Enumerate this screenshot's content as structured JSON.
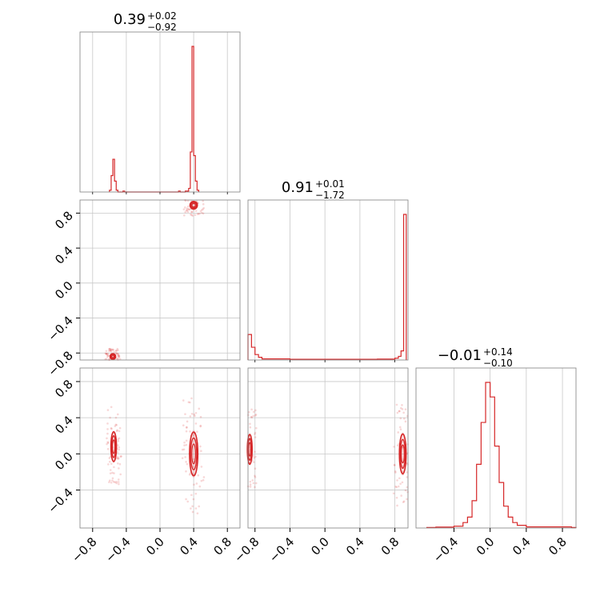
{
  "colors": {
    "accent": "#d62728",
    "grid": "#c8c8c8",
    "frame": "#808080"
  },
  "chart_data": {
    "type": "corner",
    "titles": [
      {
        "value": "0.39",
        "plus": "+0.02",
        "minus": "−0.92"
      },
      {
        "value": "0.91",
        "plus": "+0.01",
        "minus": "−1.72"
      },
      {
        "value": "−0.01",
        "plus": "+0.14",
        "minus": "−0.10"
      }
    ],
    "axes": [
      {
        "range": [
          -0.95,
          0.95
        ],
        "ticks": [
          "−0.8",
          "−0.4",
          "0.0",
          "0.4",
          "0.8"
        ],
        "tick_values": [
          -0.8,
          -0.4,
          0.0,
          0.4,
          0.8
        ]
      },
      {
        "range": [
          -0.88,
          0.95
        ],
        "ticks": [
          "−0.8",
          "−0.4",
          "0.0",
          "0.4",
          "0.8"
        ],
        "tick_values": [
          -0.8,
          -0.4,
          0.0,
          0.4,
          0.8
        ]
      },
      {
        "range": [
          -0.82,
          0.95
        ],
        "ticks": [
          "−0.4",
          "0.0",
          "0.4",
          "0.8"
        ],
        "tick_values": [
          -0.4,
          0.0,
          0.4,
          0.8
        ]
      }
    ],
    "histograms": [
      {
        "param": 0,
        "bins": [
          {
            "x0": -0.6,
            "x1": -0.58,
            "count": 0.01
          },
          {
            "x0": -0.58,
            "x1": -0.56,
            "count": 0.09
          },
          {
            "x0": -0.56,
            "x1": -0.54,
            "count": 0.18
          },
          {
            "x0": -0.54,
            "x1": -0.52,
            "count": 0.06
          },
          {
            "x0": -0.52,
            "x1": -0.5,
            "count": 0.01
          },
          {
            "x0": -0.44,
            "x1": -0.42,
            "count": 0.005
          },
          {
            "x0": 0.22,
            "x1": 0.24,
            "count": 0.005
          },
          {
            "x0": 0.3,
            "x1": 0.34,
            "count": 0.005
          },
          {
            "x0": 0.34,
            "x1": 0.36,
            "count": 0.02
          },
          {
            "x0": 0.36,
            "x1": 0.38,
            "count": 0.22
          },
          {
            "x0": 0.38,
            "x1": 0.4,
            "count": 0.8
          },
          {
            "x0": 0.4,
            "x1": 0.42,
            "count": 0.2
          },
          {
            "x0": 0.42,
            "x1": 0.44,
            "count": 0.06
          },
          {
            "x0": 0.44,
            "x1": 0.46,
            "count": 0.01
          }
        ]
      },
      {
        "param": 1,
        "bins": [
          {
            "x0": -0.88,
            "x1": -0.84,
            "count": 0.14
          },
          {
            "x0": -0.84,
            "x1": -0.8,
            "count": 0.07
          },
          {
            "x0": -0.8,
            "x1": -0.76,
            "count": 0.03
          },
          {
            "x0": -0.76,
            "x1": -0.72,
            "count": 0.015
          },
          {
            "x0": -0.72,
            "x1": -0.4,
            "count": 0.006
          },
          {
            "x0": -0.4,
            "x1": 0.6,
            "count": 0.004
          },
          {
            "x0": 0.6,
            "x1": 0.8,
            "count": 0.005
          },
          {
            "x0": 0.8,
            "x1": 0.84,
            "count": 0.01
          },
          {
            "x0": 0.84,
            "x1": 0.87,
            "count": 0.02
          },
          {
            "x0": 0.87,
            "x1": 0.9,
            "count": 0.05
          },
          {
            "x0": 0.9,
            "x1": 0.93,
            "count": 0.8
          }
        ]
      },
      {
        "param": 2,
        "bins": [
          {
            "x0": -0.7,
            "x1": -0.6,
            "count": 0.003
          },
          {
            "x0": -0.6,
            "x1": -0.4,
            "count": 0.005
          },
          {
            "x0": -0.4,
            "x1": -0.3,
            "count": 0.01
          },
          {
            "x0": -0.3,
            "x1": -0.25,
            "count": 0.03
          },
          {
            "x0": -0.25,
            "x1": -0.2,
            "count": 0.06
          },
          {
            "x0": -0.2,
            "x1": -0.15,
            "count": 0.15
          },
          {
            "x0": -0.15,
            "x1": -0.1,
            "count": 0.35
          },
          {
            "x0": -0.1,
            "x1": -0.05,
            "count": 0.58
          },
          {
            "x0": -0.05,
            "x1": 0.0,
            "count": 0.8
          },
          {
            "x0": 0.0,
            "x1": 0.05,
            "count": 0.72
          },
          {
            "x0": 0.05,
            "x1": 0.1,
            "count": 0.45
          },
          {
            "x0": 0.1,
            "x1": 0.15,
            "count": 0.25
          },
          {
            "x0": 0.15,
            "x1": 0.2,
            "count": 0.12
          },
          {
            "x0": 0.2,
            "x1": 0.25,
            "count": 0.06
          },
          {
            "x0": 0.25,
            "x1": 0.3,
            "count": 0.03
          },
          {
            "x0": 0.3,
            "x1": 0.4,
            "count": 0.015
          },
          {
            "x0": 0.4,
            "x1": 0.9,
            "count": 0.006
          },
          {
            "x0": 0.9,
            "x1": 0.95,
            "count": 0.003
          }
        ]
      }
    ],
    "contours": [
      {
        "xparam": 0,
        "yparam": 1,
        "clusters": [
          {
            "cx": 0.4,
            "cy": 0.89,
            "rx": 0.04,
            "ry": 0.04
          },
          {
            "cx": -0.56,
            "cy": -0.84,
            "rx": 0.03,
            "ry": 0.03
          }
        ]
      },
      {
        "xparam": 0,
        "yparam": 2,
        "clusters": [
          {
            "cx": 0.4,
            "cy": 0.0,
            "rx": 0.045,
            "ry": 0.22
          },
          {
            "cx": -0.55,
            "cy": 0.08,
            "rx": 0.03,
            "ry": 0.15
          }
        ]
      },
      {
        "xparam": 1,
        "yparam": 2,
        "clusters": [
          {
            "cx": 0.89,
            "cy": 0.0,
            "rx": 0.035,
            "ry": 0.2
          },
          {
            "cx": -0.86,
            "cy": 0.05,
            "rx": 0.025,
            "ry": 0.15
          }
        ]
      }
    ],
    "grid": true
  }
}
